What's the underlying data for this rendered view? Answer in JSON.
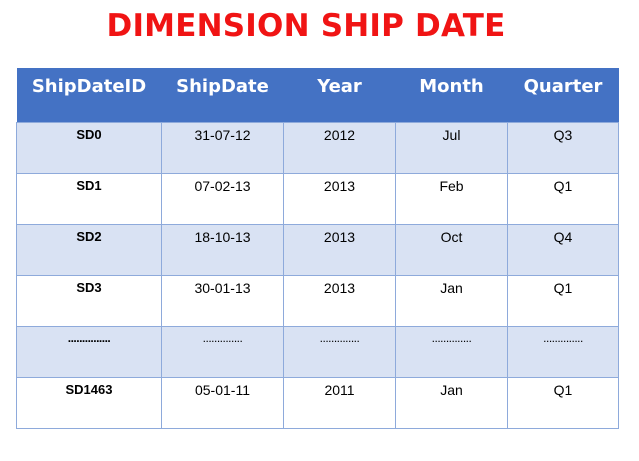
{
  "title": "DIMENSION SHIP DATE",
  "table": {
    "headers": [
      "ShipDateID",
      "ShipDate",
      "Year",
      "Month",
      "Quarter"
    ],
    "rows": [
      [
        "SD0",
        "31-07-12",
        "2012",
        "Jul",
        "Q3"
      ],
      [
        "SD1",
        "07-02-13",
        "2013",
        "Feb",
        "Q1"
      ],
      [
        "SD2",
        "18-10-13",
        "2013",
        "Oct",
        "Q4"
      ],
      [
        "SD3",
        "30-01-13",
        "2013",
        "Jan",
        "Q1"
      ],
      [
        "...............",
        "..............",
        "..............",
        "..............",
        ".............."
      ],
      [
        "SD1463",
        "05-01-11",
        "2011",
        "Jan",
        "Q1"
      ]
    ]
  },
  "colors": {
    "title": "#f01414",
    "header_bg": "#4472c4",
    "row_shade": "#d9e2f3",
    "grid": "#8eaadb"
  }
}
